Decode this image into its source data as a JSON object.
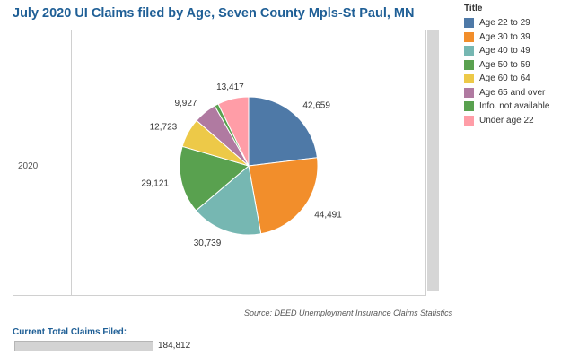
{
  "header": {
    "title": "July 2020 UI Claims filed by Age, Seven County Mpls-St Paul, MN"
  },
  "row_label": "2020",
  "legend": {
    "title": "Title"
  },
  "source": "Source: DEED Unemployment Insurance Claims Statistics",
  "summary": {
    "label": "Current Total Claims Filed:",
    "value": "184,812"
  },
  "chart_data": {
    "type": "pie",
    "title": "July 2020 UI Claims filed by Age, Seven County Mpls-St Paul, MN",
    "categories": [
      "Age 22 to 29",
      "Age 30 to 39",
      "Age 40 to 49",
      "Age 50 to 59",
      "Age 60 to 64",
      "Age 65 and over",
      "Info. not available",
      "Under age 22"
    ],
    "values": [
      42659,
      44491,
      30739,
      29121,
      12723,
      9927,
      1735,
      13417
    ],
    "labels": [
      "42,659",
      "44,491",
      "30,739",
      "29,121",
      "12,723",
      "9,927",
      "",
      "13,417"
    ],
    "colors": [
      "#4e79a7",
      "#f28e2b",
      "#76b7b2",
      "#59a14f",
      "#edc948",
      "#b07aa1",
      "#59a14f",
      "#ff9da7"
    ],
    "legend_position": "right"
  }
}
